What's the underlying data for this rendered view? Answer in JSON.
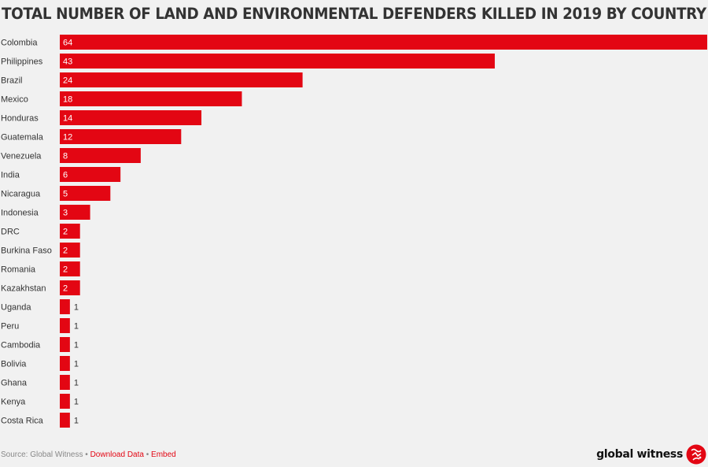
{
  "chart_data": {
    "type": "bar",
    "orientation": "horizontal",
    "title": "TOTAL NUMBER OF LAND AND ENVIRONMENTAL DEFENDERS KILLED IN 2019 BY COUNTRY",
    "categories": [
      "Colombia",
      "Philippines",
      "Brazil",
      "Mexico",
      "Honduras",
      "Guatemala",
      "Venezuela",
      "India",
      "Nicaragua",
      "Indonesia",
      "DRC",
      "Burkina Faso",
      "Romania",
      "Kazakhstan",
      "Uganda",
      "Peru",
      "Cambodia",
      "Bolivia",
      "Ghana",
      "Kenya",
      "Costa Rica"
    ],
    "values": [
      64,
      43,
      24,
      18,
      14,
      12,
      8,
      6,
      5,
      3,
      2,
      2,
      2,
      2,
      1,
      1,
      1,
      1,
      1,
      1,
      1
    ],
    "xlim": [
      0,
      64
    ],
    "grid": false,
    "bar_color": "#e30613"
  },
  "footer": {
    "source": "Source: Global Witness",
    "separator": "•",
    "download": "Download Data",
    "embed": "Embed"
  },
  "brand": {
    "name": "global witness",
    "logo_icon": "global-witness-logo-icon"
  }
}
